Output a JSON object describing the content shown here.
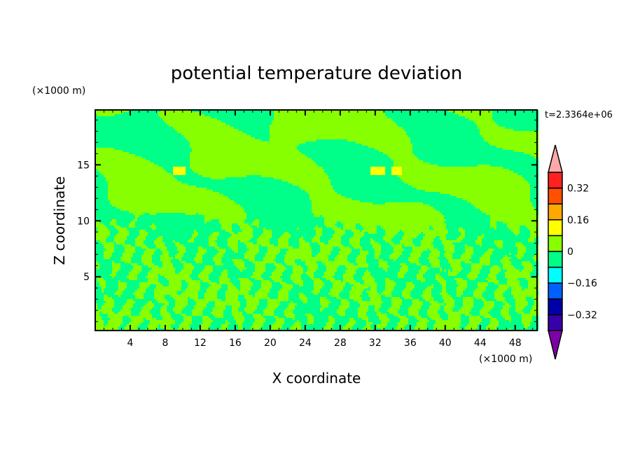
{
  "chart_data": {
    "type": "heatmap",
    "subtype": "filled-contour",
    "title": "potential temperature deviation",
    "xlabel": "X coordinate",
    "ylabel": "Z coordinate",
    "x_unit": "(×1000 m)",
    "y_unit": "(×1000 m)",
    "time_label": "t=2.3364e+06",
    "xlim": [
      0,
      50.5
    ],
    "ylim": [
      0.2,
      19.9
    ],
    "x_ticks": [
      "4",
      "8",
      "12",
      "16",
      "20",
      "24",
      "28",
      "32",
      "36",
      "40",
      "44",
      "48"
    ],
    "y_ticks": [
      "5",
      "10",
      "15"
    ],
    "colorbar": {
      "levels": [
        -0.4,
        -0.32,
        -0.24,
        -0.16,
        -0.08,
        0,
        0.08,
        0.16,
        0.24,
        0.32,
        0.4
      ],
      "labels": [
        "0.32",
        "0.16",
        "0",
        "-0.16",
        "-0.32"
      ],
      "label_values": [
        0.32,
        0.16,
        0,
        -0.16,
        -0.32
      ],
      "colors": [
        "#3800a8",
        "#0000a8",
        "#0060ff",
        "#00ffff",
        "#00ff88",
        "#88ff00",
        "#ffff00",
        "#ffa800",
        "#ff5000",
        "#ff2020"
      ],
      "under_color": "#8000a8",
      "over_color": "#ffa8a8",
      "extend": "both"
    },
    "dominant_values": "field mostly between -0.08 and 0.08; small yellow patches (0.08–0.16) near z≈14.5–15 at x≈9, 32, 34"
  }
}
